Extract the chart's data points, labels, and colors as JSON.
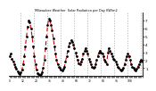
{
  "title": "Milwaukee Weather  Solar Radiation per Day KW/m2",
  "background_color": "#ffffff",
  "line_color": "#cc0000",
  "dot_color": "#000000",
  "grid_color": "#aaaaaa",
  "ylim": [
    0,
    8
  ],
  "yticks": [
    1,
    2,
    3,
    4,
    5,
    6,
    7
  ],
  "values": [
    2.5,
    2.8,
    2.2,
    1.8,
    1.5,
    1.2,
    0.9,
    0.6,
    0.4,
    0.3,
    0.5,
    0.8,
    1.5,
    2.5,
    3.8,
    5.0,
    6.2,
    7.0,
    6.8,
    6.0,
    5.0,
    3.8,
    2.5,
    1.5,
    0.8,
    0.4,
    0.2,
    0.1,
    0.2,
    0.5,
    1.0,
    2.0,
    3.5,
    5.0,
    6.5,
    7.2,
    7.0,
    6.5,
    5.8,
    4.8,
    3.8,
    2.8,
    2.0,
    1.5,
    1.2,
    1.0,
    0.8,
    0.7,
    0.9,
    1.2,
    1.8,
    2.5,
    3.2,
    3.8,
    4.2,
    4.5,
    4.3,
    4.0,
    3.5,
    3.0,
    2.5,
    2.0,
    1.6,
    1.5,
    1.8,
    2.2,
    2.8,
    3.2,
    3.5,
    3.2,
    2.8,
    2.2,
    1.8,
    1.5,
    1.2,
    1.0,
    1.2,
    1.5,
    2.0,
    2.5,
    3.0,
    3.2,
    3.0,
    2.8,
    2.5,
    2.0,
    1.8,
    1.5,
    3.0,
    3.5,
    3.2,
    2.8,
    2.5,
    2.2,
    2.0,
    1.8,
    1.5,
    1.2,
    1.0,
    0.8,
    0.7,
    0.8,
    1.0,
    1.5,
    2.0,
    2.5,
    2.8,
    2.5,
    2.0,
    1.5,
    1.2,
    1.0,
    0.8,
    0.7,
    0.9,
    1.2,
    1.5,
    1.8,
    2.0,
    1.8
  ],
  "grid_positions": [
    10,
    22,
    34,
    46,
    58,
    70,
    82,
    94,
    106,
    118
  ],
  "num_years": 10
}
